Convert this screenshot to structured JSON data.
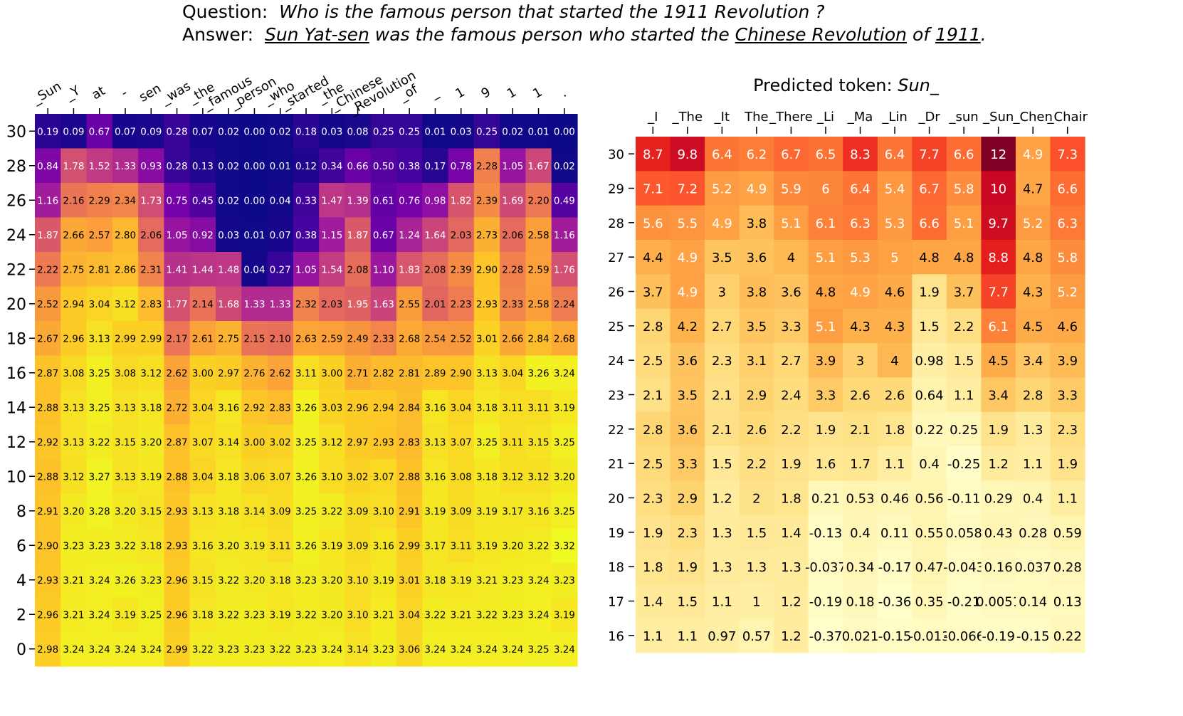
{
  "header": {
    "question_label": "Question:",
    "question_text": "Who is the famous person that started the 1911  Revolution ?",
    "answer_label": "Answer:",
    "answer_parts": [
      {
        "text": "Sun Yat-sen",
        "underline": true
      },
      {
        "text": " was the famous person who started the ",
        "underline": false
      },
      {
        "text": "Chinese Revolution",
        "underline": true
      },
      {
        "text": " of ",
        "underline": false
      },
      {
        "text": "1911",
        "underline": true
      },
      {
        "text": ".",
        "underline": false
      }
    ]
  },
  "chart_data": [
    {
      "type": "heatmap",
      "colormap": "plasma",
      "title": "",
      "x_tick_labels": [
        "_Sun",
        "_Y",
        "at",
        "-",
        "sen",
        "_was",
        "_the",
        "_famous",
        "_person",
        "_who",
        "_started",
        "_the",
        "_Chinese",
        "_Revolution",
        "_of",
        "_",
        "1",
        "9",
        "1",
        "1",
        "."
      ],
      "y_tick_labels": [
        "30",
        "28",
        "26",
        "24",
        "22",
        "20",
        "18",
        "16",
        "14",
        "12",
        "10",
        "8",
        "6",
        "4",
        "2",
        "0"
      ],
      "values": [
        [
          0.19,
          0.09,
          0.67,
          0.07,
          0.09,
          0.28,
          0.07,
          0.02,
          0.0,
          0.02,
          0.18,
          0.03,
          0.08,
          0.25,
          0.25,
          0.01,
          0.03,
          0.25,
          0.02,
          0.01,
          0.0
        ],
        [
          0.84,
          1.78,
          1.52,
          1.33,
          0.93,
          0.28,
          0.13,
          0.02,
          0.0,
          0.01,
          0.12,
          0.34,
          0.66,
          0.5,
          0.38,
          0.17,
          0.78,
          2.28,
          1.05,
          1.67,
          0.02
        ],
        [
          1.16,
          2.16,
          2.29,
          2.34,
          1.73,
          0.75,
          0.45,
          0.02,
          0.0,
          0.04,
          0.33,
          1.47,
          1.39,
          0.61,
          0.76,
          0.98,
          1.82,
          2.39,
          1.69,
          2.2,
          0.49
        ],
        [
          1.87,
          2.66,
          2.57,
          2.8,
          2.06,
          1.05,
          0.92,
          0.03,
          0.01,
          0.07,
          0.38,
          1.15,
          1.87,
          0.67,
          1.24,
          1.64,
          2.03,
          2.73,
          2.06,
          2.58,
          1.16
        ],
        [
          2.22,
          2.75,
          2.81,
          2.86,
          2.31,
          1.41,
          1.44,
          1.48,
          0.04,
          0.27,
          1.05,
          1.54,
          2.08,
          1.1,
          1.83,
          2.08,
          2.39,
          2.9,
          2.28,
          2.59,
          1.76
        ],
        [
          2.52,
          2.94,
          3.04,
          3.12,
          2.83,
          1.77,
          2.14,
          1.68,
          1.33,
          1.33,
          2.32,
          2.03,
          1.95,
          1.63,
          2.55,
          2.01,
          2.23,
          2.93,
          2.33,
          2.58,
          2.24
        ],
        [
          2.67,
          2.96,
          3.13,
          2.99,
          2.99,
          2.17,
          2.61,
          2.75,
          2.15,
          2.1,
          2.63,
          2.59,
          2.49,
          2.33,
          2.68,
          2.54,
          2.52,
          3.01,
          2.66,
          2.84,
          2.68
        ],
        [
          2.87,
          3.08,
          3.25,
          3.08,
          3.12,
          2.62,
          3.0,
          2.97,
          2.76,
          2.62,
          3.11,
          3.0,
          2.71,
          2.82,
          2.81,
          2.89,
          2.9,
          3.13,
          3.04,
          3.26,
          3.24
        ],
        [
          2.88,
          3.13,
          3.25,
          3.13,
          3.18,
          2.72,
          3.04,
          3.16,
          2.92,
          2.83,
          3.26,
          3.03,
          2.96,
          2.94,
          2.84,
          3.16,
          3.04,
          3.18,
          3.11,
          3.11,
          3.19
        ],
        [
          2.92,
          3.13,
          3.22,
          3.15,
          3.2,
          2.87,
          3.07,
          3.14,
          3.0,
          3.02,
          3.25,
          3.12,
          2.97,
          2.93,
          2.83,
          3.13,
          3.07,
          3.25,
          3.11,
          3.15,
          3.25
        ],
        [
          2.88,
          3.12,
          3.27,
          3.13,
          3.19,
          2.88,
          3.04,
          3.18,
          3.06,
          3.07,
          3.26,
          3.1,
          3.02,
          3.07,
          2.88,
          3.16,
          3.08,
          3.18,
          3.12,
          3.12,
          3.2
        ],
        [
          2.91,
          3.2,
          3.28,
          3.2,
          3.15,
          2.93,
          3.13,
          3.18,
          3.14,
          3.09,
          3.25,
          3.22,
          3.09,
          3.1,
          2.91,
          3.19,
          3.09,
          3.19,
          3.17,
          3.16,
          3.25
        ],
        [
          2.9,
          3.23,
          3.23,
          3.22,
          3.18,
          2.93,
          3.16,
          3.2,
          3.19,
          3.11,
          3.26,
          3.19,
          3.09,
          3.16,
          2.99,
          3.17,
          3.11,
          3.19,
          3.2,
          3.22,
          3.32
        ],
        [
          2.93,
          3.21,
          3.24,
          3.26,
          3.23,
          2.96,
          3.15,
          3.22,
          3.2,
          3.18,
          3.23,
          3.2,
          3.1,
          3.19,
          3.01,
          3.18,
          3.19,
          3.21,
          3.23,
          3.24,
          3.23
        ],
        [
          2.96,
          3.21,
          3.24,
          3.19,
          3.25,
          2.96,
          3.18,
          3.22,
          3.23,
          3.19,
          3.22,
          3.2,
          3.1,
          3.21,
          3.04,
          3.22,
          3.21,
          3.22,
          3.23,
          3.24,
          3.19
        ],
        [
          2.98,
          3.24,
          3.24,
          3.24,
          3.24,
          2.99,
          3.22,
          3.23,
          3.23,
          3.22,
          3.23,
          3.24,
          3.14,
          3.23,
          3.06,
          3.24,
          3.24,
          3.24,
          3.24,
          3.25,
          3.24
        ]
      ],
      "vmin": 0,
      "vmax": 3.32,
      "grid": false,
      "legend": "none"
    },
    {
      "type": "heatmap",
      "colormap": "YlOrRd",
      "title": "Predicted token:",
      "title_token": "Sun_",
      "x_tick_labels": [
        "_I",
        "_The",
        "_It",
        "The",
        "_There",
        "_Li",
        "_Ma",
        "_Lin",
        "_Dr",
        "_sun",
        "_Sun",
        "_Chen",
        "_Chair"
      ],
      "y_tick_labels": [
        "30",
        "29",
        "28",
        "27",
        "26",
        "25",
        "24",
        "23",
        "22",
        "21",
        "20",
        "19",
        "18",
        "17",
        "16"
      ],
      "values": [
        [
          8.7,
          9.8,
          6.4,
          6.2,
          6.7,
          6.5,
          8.3,
          6.4,
          7.7,
          6.6,
          12,
          4.9,
          7.3
        ],
        [
          7.1,
          7.2,
          5.2,
          4.9,
          5.9,
          6,
          6.4,
          5.4,
          6.7,
          5.8,
          10,
          4.7,
          6.6
        ],
        [
          5.6,
          5.5,
          4.9,
          3.8,
          5.1,
          6.1,
          6.3,
          5.3,
          6.6,
          5.1,
          9.7,
          5.2,
          6.3
        ],
        [
          4.4,
          4.9,
          3.5,
          3.6,
          4,
          5.1,
          5.3,
          5,
          4.8,
          4.8,
          8.8,
          4.8,
          5.8
        ],
        [
          3.7,
          4.9,
          3,
          3.8,
          3.6,
          4.8,
          4.9,
          4.6,
          1.9,
          3.7,
          7.7,
          4.3,
          5.2
        ],
        [
          2.8,
          4.2,
          2.7,
          3.5,
          3.3,
          5.1,
          4.3,
          4.3,
          1.5,
          2.2,
          6.1,
          4.5,
          4.6
        ],
        [
          2.5,
          3.6,
          2.3,
          3.1,
          2.7,
          3.9,
          3,
          4,
          0.98,
          1.5,
          4.5,
          3.4,
          3.9
        ],
        [
          2.1,
          3.5,
          2.1,
          2.9,
          2.4,
          3.3,
          2.6,
          2.6,
          0.64,
          1.1,
          3.4,
          2.8,
          3.3
        ],
        [
          2.8,
          3.6,
          2.1,
          2.6,
          2.2,
          1.9,
          2.1,
          1.8,
          0.22,
          0.25,
          1.9,
          1.3,
          2.3
        ],
        [
          2.5,
          3.3,
          1.5,
          2.2,
          1.9,
          1.6,
          1.7,
          1.1,
          0.4,
          -0.25,
          1.2,
          1.1,
          1.9
        ],
        [
          2.3,
          2.9,
          1.2,
          2,
          1.8,
          0.21,
          0.53,
          0.46,
          0.56,
          -0.11,
          0.29,
          0.4,
          1.1
        ],
        [
          1.9,
          2.3,
          1.3,
          1.5,
          1.4,
          -0.13,
          0.4,
          0.11,
          0.55,
          0.058,
          0.43,
          0.28,
          0.59
        ],
        [
          1.8,
          1.9,
          1.3,
          1.3,
          1.3,
          -0.037,
          0.34,
          -0.17,
          0.47,
          -0.043,
          0.16,
          0.037,
          0.28
        ],
        [
          1.4,
          1.5,
          1.1,
          1,
          1.2,
          -0.19,
          0.18,
          -0.36,
          0.35,
          -0.21,
          0.0051,
          0.14,
          0.13
        ],
        [
          1.1,
          1.1,
          0.97,
          0.57,
          1.2,
          -0.37,
          0.021,
          -0.15,
          -0.013,
          -0.066,
          -0.19,
          -0.15,
          0.22
        ]
      ],
      "vmin": -0.4,
      "vmax": 12,
      "grid": false,
      "legend": "none"
    }
  ]
}
